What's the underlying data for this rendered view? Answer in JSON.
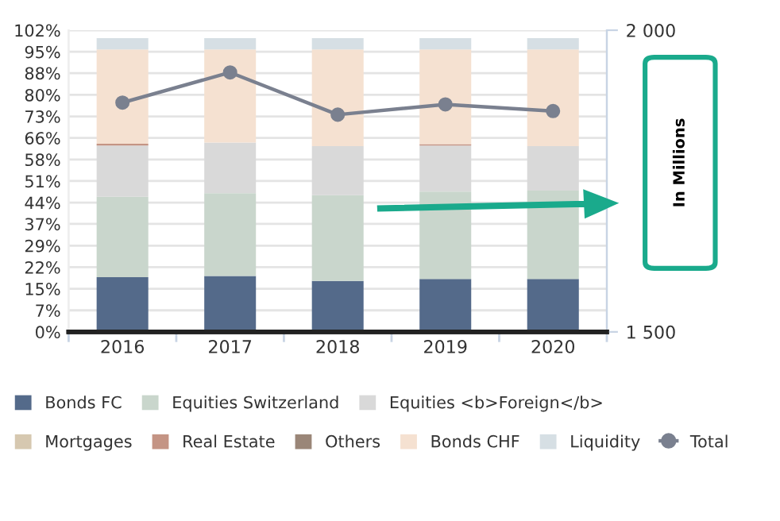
{
  "chart_data": {
    "type": "bar",
    "stacked": true,
    "categories": [
      "2016",
      "2017",
      "2018",
      "2019",
      "2020"
    ],
    "series": [
      {
        "name": "Bonds FC",
        "color": "#546a8a",
        "values": [
          18.5,
          18.9,
          17.2,
          17.9,
          17.9
        ]
      },
      {
        "name": "Equities Switzerland",
        "color": "#c9d6cc",
        "values": [
          27.2,
          28.0,
          29.0,
          29.5,
          29.9
        ]
      },
      {
        "name": "Equities <b>Foreign</b>",
        "color": "#d9d9d9",
        "values": [
          17.3,
          17.1,
          16.6,
          15.6,
          15.0
        ]
      },
      {
        "name": "Mortgages",
        "color": "#d6c8b0",
        "values": [
          0,
          0,
          0,
          0,
          0
        ]
      },
      {
        "name": "Real Estate",
        "color": "#c49484",
        "values": [
          0.6,
          0,
          0,
          0.5,
          0
        ]
      },
      {
        "name": "Others",
        "color": "#9a8678",
        "values": [
          0,
          0,
          0,
          0,
          0
        ]
      },
      {
        "name": "Bonds CHF",
        "color": "#f5e1d1",
        "values": [
          31.9,
          31.5,
          32.7,
          32.0,
          32.7
        ]
      },
      {
        "name": "Liquidity",
        "color": "#d6dfe4",
        "values": [
          3.8,
          3.8,
          3.8,
          3.8,
          3.8
        ]
      },
      {
        "name": "Total",
        "type": "line",
        "axis": "y2",
        "marker": "circle",
        "color": "#7a808f",
        "values": [
          1880,
          1930,
          1860,
          1877,
          1866
        ]
      }
    ],
    "ylim": [
      0,
      102
    ],
    "yticks": [
      {
        "value": 0,
        "label": "0%"
      },
      {
        "value": 7.2857,
        "label": "7%"
      },
      {
        "value": 14.5714,
        "label": "15%"
      },
      {
        "value": 21.8571,
        "label": "22%"
      },
      {
        "value": 29.1429,
        "label": "29%"
      },
      {
        "value": 36.5,
        "label": "37%"
      },
      {
        "value": 43.7143,
        "label": "44%"
      },
      {
        "value": 51,
        "label": "51%"
      },
      {
        "value": 58.2857,
        "label": "58%"
      },
      {
        "value": 65.5714,
        "label": "66%"
      },
      {
        "value": 72.8571,
        "label": "73%"
      },
      {
        "value": 80.1429,
        "label": "80%"
      },
      {
        "value": 87.5,
        "label": "88%"
      },
      {
        "value": 94.7143,
        "label": "95%"
      },
      {
        "value": 102,
        "label": "102%"
      }
    ],
    "y2lim": [
      1500,
      2000
    ],
    "y2ticks": [
      {
        "value": 1500,
        "label": "1 500"
      },
      {
        "value": 2000,
        "label": "2 000"
      }
    ],
    "annotations": [
      "In Millions"
    ],
    "grid": "y",
    "legend": "bottom"
  }
}
